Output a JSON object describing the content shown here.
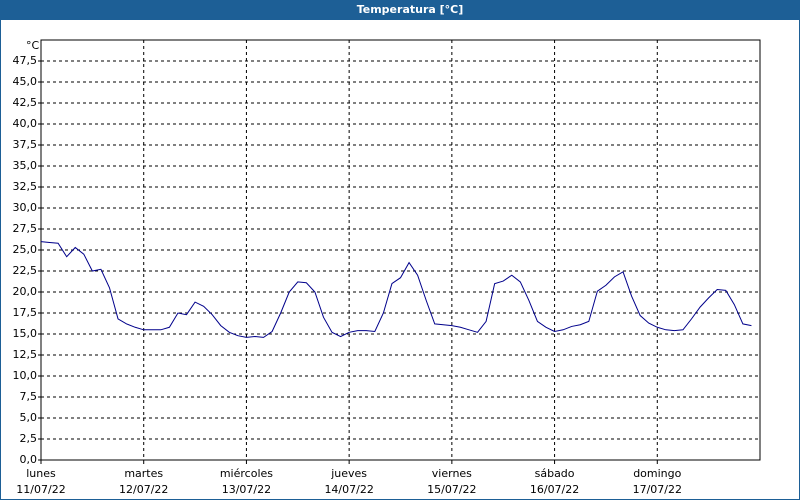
{
  "chart_data": {
    "type": "line",
    "title": "Temperatura [°C]",
    "y_label": "°C",
    "x": [
      0,
      2,
      4,
      6,
      8,
      10,
      12,
      14,
      16,
      18,
      20,
      22,
      24,
      26,
      28,
      30,
      32,
      34,
      36,
      38,
      40,
      42,
      44,
      46,
      48,
      50,
      52,
      54,
      56,
      58,
      60,
      62,
      64,
      66,
      68,
      70,
      72,
      74,
      76,
      78,
      80,
      82,
      84,
      86,
      88,
      90,
      92,
      94,
      96,
      98,
      100,
      102,
      104,
      106,
      108,
      110,
      112,
      114,
      116,
      118,
      120,
      122,
      124,
      126,
      128,
      130,
      132,
      134,
      136,
      138,
      140,
      142,
      144,
      146,
      148,
      150,
      152,
      154,
      156,
      158,
      160,
      162,
      164,
      166
    ],
    "values": [
      26,
      25.9,
      25.8,
      24.2,
      25.3,
      24.5,
      22.5,
      22.7,
      20.5,
      16.8,
      16.2,
      15.8,
      15.5,
      15.5,
      15.5,
      15.8,
      17.5,
      17.3,
      18.8,
      18.3,
      17.3,
      16,
      15.2,
      14.8,
      14.6,
      14.7,
      14.6,
      15.3,
      17.5,
      20,
      21.2,
      21.1,
      20,
      17,
      15.2,
      14.7,
      15.2,
      15.4,
      15.4,
      15.3,
      17.5,
      21,
      21.7,
      23.5,
      22,
      19,
      16.2,
      16.1,
      16,
      15.8,
      15.5,
      15.2,
      16.5,
      21,
      21.3,
      22,
      21.2,
      19,
      16.5,
      15.8,
      15.3,
      15.5,
      15.9,
      16.1,
      16.5,
      20.1,
      20.8,
      21.8,
      22.4,
      19.5,
      17.2,
      16.3,
      15.8,
      15.5,
      15.4,
      15.5,
      16.8,
      18.2,
      19.3,
      20.3,
      20.2,
      18.5,
      16.2,
      16
    ],
    "color": "#00008b",
    "xlim": [
      0,
      168
    ],
    "xticks": [
      {
        "value": 0,
        "label": [
          "lunes",
          "11/07/22"
        ]
      },
      {
        "value": 24,
        "label": [
          "martes",
          "12/07/22"
        ]
      },
      {
        "value": 48,
        "label": [
          "miércoles",
          "13/07/22"
        ]
      },
      {
        "value": 72,
        "label": [
          "jueves",
          "14/07/22"
        ]
      },
      {
        "value": 96,
        "label": [
          "viernes",
          "15/07/22"
        ]
      },
      {
        "value": 120,
        "label": [
          "sábado",
          "16/07/22"
        ]
      },
      {
        "value": 144,
        "label": [
          "domingo",
          "17/07/22"
        ]
      }
    ],
    "ylim": [
      0,
      50
    ],
    "yticks": [
      {
        "value": 0,
        "label": "0,0"
      },
      {
        "value": 2.5,
        "label": "2,5"
      },
      {
        "value": 5,
        "label": "5,0"
      },
      {
        "value": 7.5,
        "label": "7,5"
      },
      {
        "value": 10,
        "label": "10,0"
      },
      {
        "value": 12.5,
        "label": "12,5"
      },
      {
        "value": 15,
        "label": "15,0"
      },
      {
        "value": 17.5,
        "label": "17,5"
      },
      {
        "value": 20,
        "label": "20,0"
      },
      {
        "value": 22.5,
        "label": "22,5"
      },
      {
        "value": 25,
        "label": "25,0"
      },
      {
        "value": 27.5,
        "label": "27,5"
      },
      {
        "value": 30,
        "label": "30,0"
      },
      {
        "value": 32.5,
        "label": "32,5"
      },
      {
        "value": 35,
        "label": "35,0"
      },
      {
        "value": 37.5,
        "label": "37,5"
      },
      {
        "value": 40,
        "label": "40,0"
      },
      {
        "value": 42.5,
        "label": "42,5"
      },
      {
        "value": 45,
        "label": "45,0"
      },
      {
        "value": 47.5,
        "label": "47,5"
      }
    ],
    "grid": true
  }
}
